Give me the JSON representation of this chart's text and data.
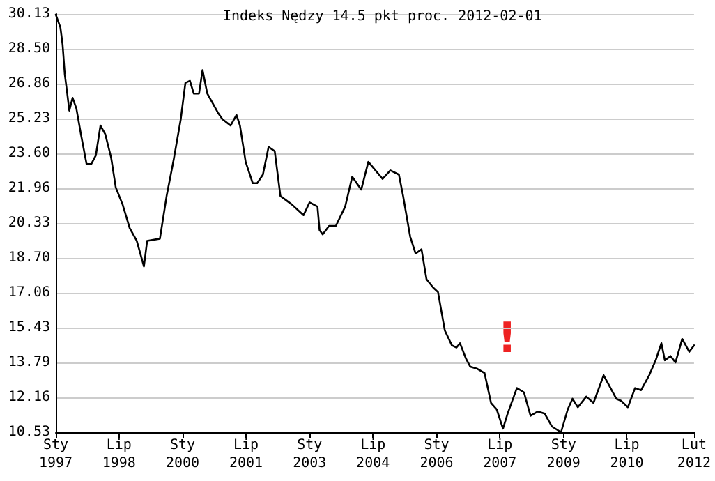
{
  "chart_data": {
    "type": "line",
    "title": "Indeks Nędzy 14.5 pkt proc. 2012-02-01",
    "x": [
      "1997-01-01",
      "1997-02-10",
      "1997-03-01",
      "1997-03-20",
      "1997-04-08",
      "1997-04-28",
      "1997-05-26",
      "1997-06-28",
      "1997-08-06",
      "1997-09-24",
      "1997-11-04",
      "1997-12-13",
      "1998-01-22",
      "1998-03-04",
      "1998-04-24",
      "1998-06-03",
      "1998-08-01",
      "1998-10-01",
      "1998-12-01",
      "1999-02-01",
      "1999-03-01",
      "1999-06-19",
      "1999-08-16",
      "1999-10-16",
      "1999-12-16",
      "2000-01-25",
      "2000-03-04",
      "2000-04-06",
      "2000-05-22",
      "2000-06-21",
      "2000-08-01",
      "2000-11-01",
      "2000-12-10",
      "2001-02-18",
      "2001-04-10",
      "2001-05-10",
      "2001-06-28",
      "2001-08-28",
      "2001-10-06",
      "2001-11-24",
      "2002-01-12",
      "2002-03-06",
      "2002-04-24",
      "2002-08-01",
      "2002-11-10",
      "2003-01-01",
      "2003-03-10",
      "2003-03-28",
      "2003-04-24",
      "2003-06-18",
      "2003-08-16",
      "2003-11-04",
      "2004-01-04",
      "2004-03-22",
      "2004-05-22",
      "2004-09-22",
      "2004-11-28",
      "2005-02-10",
      "2005-03-18",
      "2005-05-18",
      "2005-07-04",
      "2005-08-24",
      "2005-10-06",
      "2005-12-04",
      "2006-01-13",
      "2006-03-13",
      "2006-05-13",
      "2006-06-22",
      "2006-07-22",
      "2006-09-10",
      "2006-10-19",
      "2006-12-19",
      "2007-02-19",
      "2007-04-16",
      "2007-06-04",
      "2007-07-28",
      "2007-09-06",
      "2007-11-25",
      "2008-01-25",
      "2008-03-22",
      "2008-05-22",
      "2008-07-22",
      "2008-09-22",
      "2008-12-10",
      "2009-02-06",
      "2009-03-19",
      "2009-05-04",
      "2009-07-16",
      "2009-09-16",
      "2009-12-13",
      "2010-04-01",
      "2010-05-13",
      "2010-07-10",
      "2010-09-10",
      "2010-11-01",
      "2011-01-10",
      "2011-03-07",
      "2011-04-25",
      "2011-05-25",
      "2011-07-13",
      "2011-08-25",
      "2011-10-22",
      "2011-12-22",
      "2012-02-01"
    ],
    "series": [
      {
        "color": "#000000",
        "values": [
          30.1,
          29.5,
          28.7,
          27.3,
          26.5,
          25.6,
          26.2,
          25.7,
          24.5,
          23.1,
          23.1,
          23.5,
          24.9,
          24.5,
          23.4,
          22.0,
          21.2,
          20.1,
          19.5,
          18.3,
          19.5,
          19.6,
          21.6,
          23.3,
          25.2,
          26.9,
          27.0,
          26.4,
          26.4,
          27.5,
          26.4,
          25.5,
          25.2,
          24.9,
          25.4,
          24.9,
          23.2,
          22.2,
          22.2,
          22.6,
          23.9,
          23.7,
          21.6,
          21.2,
          20.7,
          21.3,
          21.1,
          20.0,
          19.8,
          20.2,
          20.2,
          21.1,
          22.5,
          21.9,
          23.2,
          22.4,
          22.8,
          22.6,
          21.6,
          19.7,
          18.9,
          19.1,
          17.7,
          17.3,
          17.1,
          15.3,
          14.6,
          14.5,
          14.7,
          14.0,
          13.6,
          13.5,
          13.3,
          11.9,
          11.6,
          10.7,
          11.4,
          12.6,
          12.4,
          11.3,
          11.5,
          11.4,
          10.8,
          10.53,
          11.6,
          12.1,
          11.7,
          12.2,
          11.9,
          13.2,
          12.1,
          12.0,
          11.7,
          12.6,
          12.5,
          13.2,
          13.9,
          14.7,
          13.9,
          14.1,
          13.8,
          14.9,
          14.3,
          14.6
        ]
      }
    ],
    "xlim": [
      "1997-01-01",
      "2012-02-01"
    ],
    "xticks": [
      {
        "value": "1997-01-01",
        "label": "Sty\n1997"
      },
      {
        "value": "1998-07-01",
        "label": "Lip\n1998"
      },
      {
        "value": "2000-01-01",
        "label": "Sty\n2000"
      },
      {
        "value": "2001-07-01",
        "label": "Lip\n2001"
      },
      {
        "value": "2003-01-01",
        "label": "Sty\n2003"
      },
      {
        "value": "2004-07-01",
        "label": "Lip\n2004"
      },
      {
        "value": "2006-01-01",
        "label": "Sty\n2006"
      },
      {
        "value": "2007-07-01",
        "label": "Lip\n2007"
      },
      {
        "value": "2009-01-01",
        "label": "Sty\n2009"
      },
      {
        "value": "2010-07-01",
        "label": "Lip\n2010"
      },
      {
        "value": "2012-02-01",
        "label": "Lut\n2012"
      }
    ],
    "ylim": [
      10.53,
      30.13
    ],
    "yticks": [
      10.53,
      12.16,
      13.79,
      15.43,
      17.06,
      {
        "value": 18.7,
        "label": "18.70"
      },
      20.33,
      21.96,
      {
        "value": 23.6,
        "label": "23.60"
      },
      25.23,
      26.86,
      {
        "value": 28.5,
        "label": "28.50"
      },
      30.13
    ],
    "annotations": [
      "!"
    ],
    "grid": "y",
    "marker": "none",
    "line_style": "solid"
  }
}
